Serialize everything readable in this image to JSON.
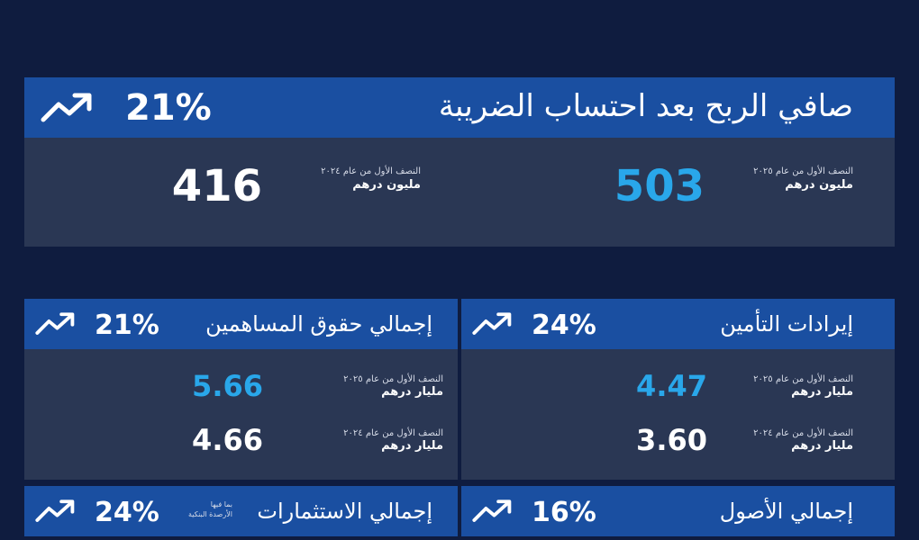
{
  "hero": {
    "title": "صافي الربح بعد احتساب الضريبة",
    "change": "21%",
    "trend_icon": "trend-up-icon",
    "current": {
      "period": "النصف الأول من عام ٢٠٢٥",
      "unit": "مليون درهم",
      "value": "503"
    },
    "previous": {
      "period": "النصف الأول من عام ٢٠٢٤",
      "unit": "مليون درهم",
      "value": "416"
    }
  },
  "cards": {
    "insurance_revenue": {
      "title": "إيرادات التأمين",
      "change": "24%",
      "current": {
        "period": "النصف الأول من عام ٢٠٢٥",
        "unit": "مليار درهم",
        "value": "4.47"
      },
      "previous": {
        "period": "النصف الأول من عام ٢٠٢٤",
        "unit": "مليار درهم",
        "value": "3.60"
      }
    },
    "shareholders_equity": {
      "title": "إجمالي حقوق المساهمين",
      "change": "21%",
      "current": {
        "period": "النصف الأول من عام ٢٠٢٥",
        "unit": "مليار درهم",
        "value": "5.66"
      },
      "previous": {
        "period": "النصف الأول من عام ٢٠٢٤",
        "unit": "مليار درهم",
        "value": "4.66"
      }
    },
    "total_assets": {
      "title": "إجمالي الأصول",
      "change": "16%"
    },
    "total_investments": {
      "title": "إجمالي الاستثمارات",
      "note_line1": "بما فيها",
      "note_line2": "الأرصدة البنكية",
      "change": "24%"
    }
  },
  "colors": {
    "background": "#0f1c3f",
    "header": "#1a4fa1",
    "body": "#2a3754",
    "accent": "#29a7ea"
  }
}
